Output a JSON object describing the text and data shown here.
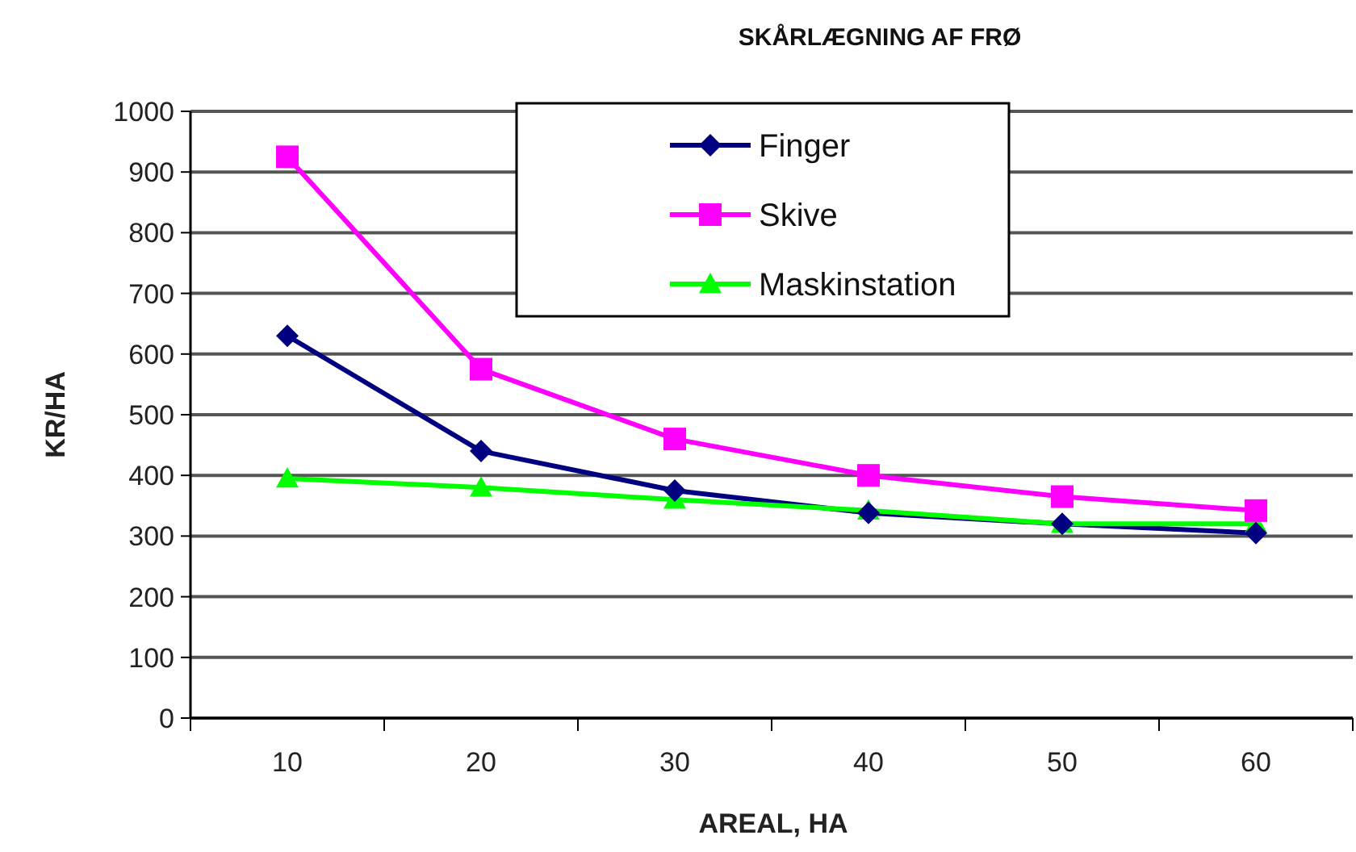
{
  "chart_data": {
    "type": "line",
    "title": "SKÅRLÆGNING AF FRØ",
    "xlabel": "AREAL, HA",
    "ylabel": "KR/HA",
    "categories": [
      "10",
      "20",
      "30",
      "40",
      "50",
      "60"
    ],
    "series": [
      {
        "name": "Finger",
        "color": "#000080",
        "marker": "diamond",
        "values": [
          630,
          440,
          375,
          338,
          320,
          305
        ]
      },
      {
        "name": "Skive",
        "color": "#ff00ff",
        "marker": "square",
        "values": [
          925,
          575,
          460,
          400,
          365,
          342
        ]
      },
      {
        "name": "Maskinstation",
        "color": "#00ff00",
        "marker": "triangle",
        "values": [
          395,
          380,
          360,
          342,
          320,
          320
        ]
      }
    ],
    "ylim": [
      0,
      1000
    ],
    "yticks": [
      0,
      100,
      200,
      300,
      400,
      500,
      600,
      700,
      800,
      900,
      1000
    ],
    "grid": "y",
    "legend": "top right"
  }
}
